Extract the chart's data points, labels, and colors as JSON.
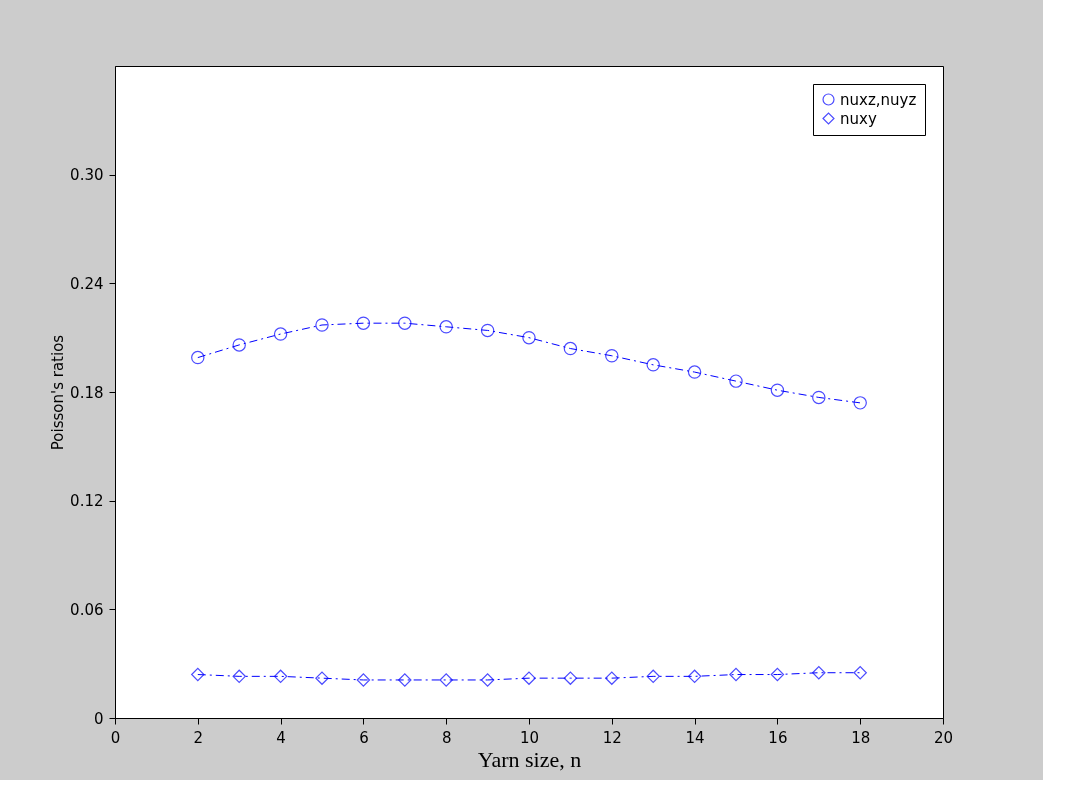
{
  "chart_data": {
    "type": "line",
    "xlabel": "Yarn size, n",
    "ylabel": "Poisson's ratios",
    "x": [
      2,
      3,
      4,
      5,
      6,
      7,
      8,
      9,
      10,
      11,
      12,
      13,
      14,
      15,
      16,
      17,
      18
    ],
    "series": [
      {
        "name": "nuxz,nuyz",
        "color": "#0000ff",
        "marker": "circle",
        "values": [
          0.199,
          0.206,
          0.212,
          0.217,
          0.218,
          0.218,
          0.216,
          0.214,
          0.21,
          0.204,
          0.2,
          0.195,
          0.191,
          0.186,
          0.181,
          0.177,
          0.174
        ]
      },
      {
        "name": "nuxy",
        "color": "#0000ff",
        "marker": "diamond",
        "values": [
          0.024,
          0.023,
          0.023,
          0.022,
          0.021,
          0.021,
          0.021,
          0.021,
          0.022,
          0.022,
          0.022,
          0.023,
          0.023,
          0.024,
          0.024,
          0.025,
          0.025
        ]
      }
    ],
    "xlim": [
      0,
      20
    ],
    "xticks": [
      0,
      2,
      4,
      6,
      8,
      10,
      12,
      14,
      16,
      18,
      20
    ],
    "ylim": [
      0,
      0.36
    ],
    "yticks": [
      {
        "value": 0,
        "label": "0"
      },
      {
        "value": 0.06,
        "label": "0.06"
      },
      {
        "value": 0.12,
        "label": "0.12"
      },
      {
        "value": 0.18,
        "label": "0.18"
      },
      {
        "value": 0.24,
        "label": "0.24"
      },
      {
        "value": 0.3,
        "label": "0.30"
      }
    ],
    "line_style": "dashed",
    "legend": "top right",
    "grid": false
  }
}
